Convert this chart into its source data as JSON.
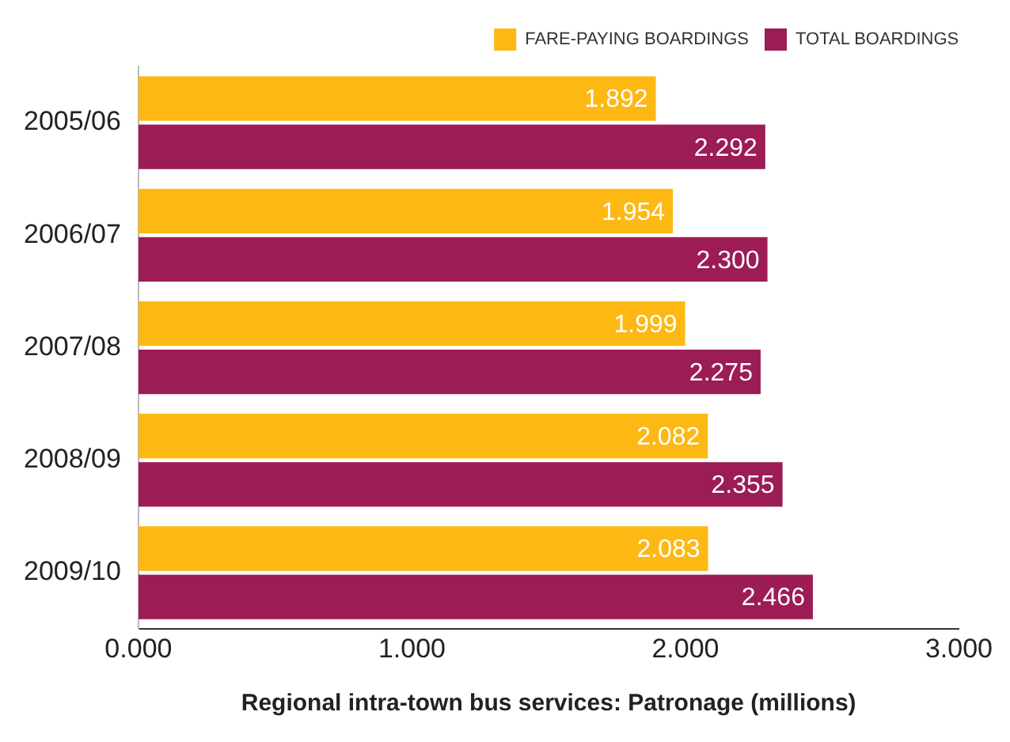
{
  "chart_data": {
    "type": "bar",
    "orientation": "horizontal",
    "xlabel": "Regional intra-town bus services: Patronage (millions)",
    "categories": [
      "2005/06",
      "2006/07",
      "2007/08",
      "2008/09",
      "2009/10"
    ],
    "series": [
      {
        "name": "FARE-PAYING BOARDINGS",
        "color": "#fdb813",
        "values": [
          1.892,
          1.954,
          1.999,
          2.082,
          2.083
        ],
        "value_labels": [
          "1.892",
          "1.954",
          "1.999",
          "2.082",
          "2.083"
        ]
      },
      {
        "name": "TOTAL BOARDINGS",
        "color": "#9c1c55",
        "values": [
          2.292,
          2.3,
          2.275,
          2.355,
          2.466
        ],
        "value_labels": [
          "2.292",
          "2.300",
          "2.275",
          "2.355",
          "2.466"
        ]
      }
    ],
    "xlim": [
      0,
      3
    ],
    "xticks": [
      {
        "value": 0,
        "label": "0.000"
      },
      {
        "value": 1,
        "label": "1.000"
      },
      {
        "value": 2,
        "label": "2.000"
      },
      {
        "value": 3,
        "label": "3.000"
      }
    ],
    "grid": false,
    "legend": "top right"
  }
}
